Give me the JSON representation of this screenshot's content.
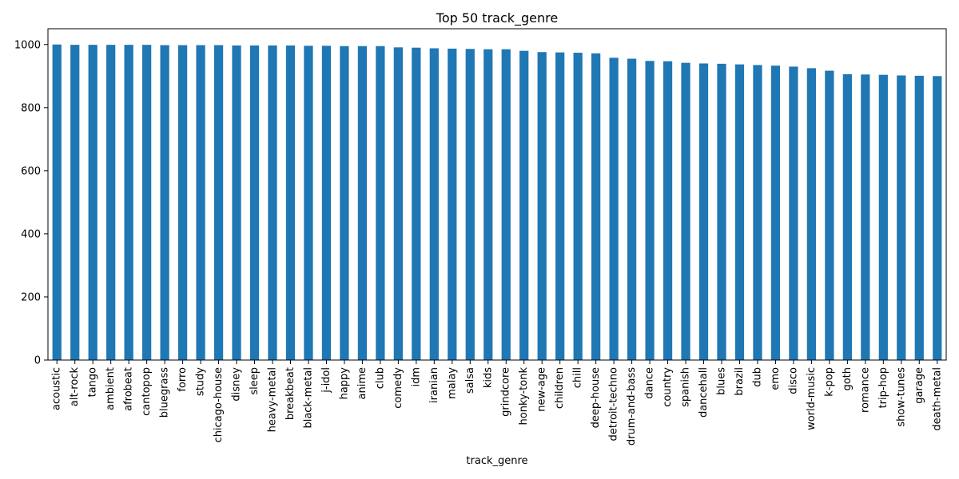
{
  "chart_data": {
    "type": "bar",
    "title": "Top 50 track_genre",
    "xlabel": "track_genre",
    "ylabel": "",
    "ylim": [
      0,
      1050
    ],
    "yticks": [
      0,
      200,
      400,
      600,
      800,
      1000
    ],
    "grid": false,
    "legend": "none",
    "bar_color": "#1f77b4",
    "categories": [
      "acoustic",
      "alt-rock",
      "tango",
      "ambient",
      "afrobeat",
      "cantopop",
      "bluegrass",
      "forro",
      "study",
      "chicago-house",
      "disney",
      "sleep",
      "heavy-metal",
      "breakbeat",
      "black-metal",
      "j-idol",
      "happy",
      "anime",
      "club",
      "comedy",
      "idm",
      "iranian",
      "malay",
      "salsa",
      "kids",
      "grindcore",
      "honky-tonk",
      "new-age",
      "children",
      "chill",
      "deep-house",
      "detroit-techno",
      "drum-and-bass",
      "dance",
      "country",
      "spanish",
      "dancehall",
      "blues",
      "brazil",
      "dub",
      "emo",
      "disco",
      "world-music",
      "k-pop",
      "goth",
      "romance",
      "trip-hop",
      "show-tunes",
      "garage",
      "death-metal"
    ],
    "values": [
      1000,
      999,
      999,
      999,
      999,
      999,
      998,
      998,
      998,
      998,
      997,
      997,
      997,
      997,
      996,
      996,
      995,
      995,
      995,
      991,
      990,
      988,
      987,
      986,
      985,
      985,
      980,
      976,
      975,
      974,
      972,
      958,
      955,
      948,
      947,
      942,
      940,
      939,
      937,
      935,
      933,
      930,
      925,
      917,
      906,
      905,
      904,
      902,
      901,
      900
    ]
  }
}
